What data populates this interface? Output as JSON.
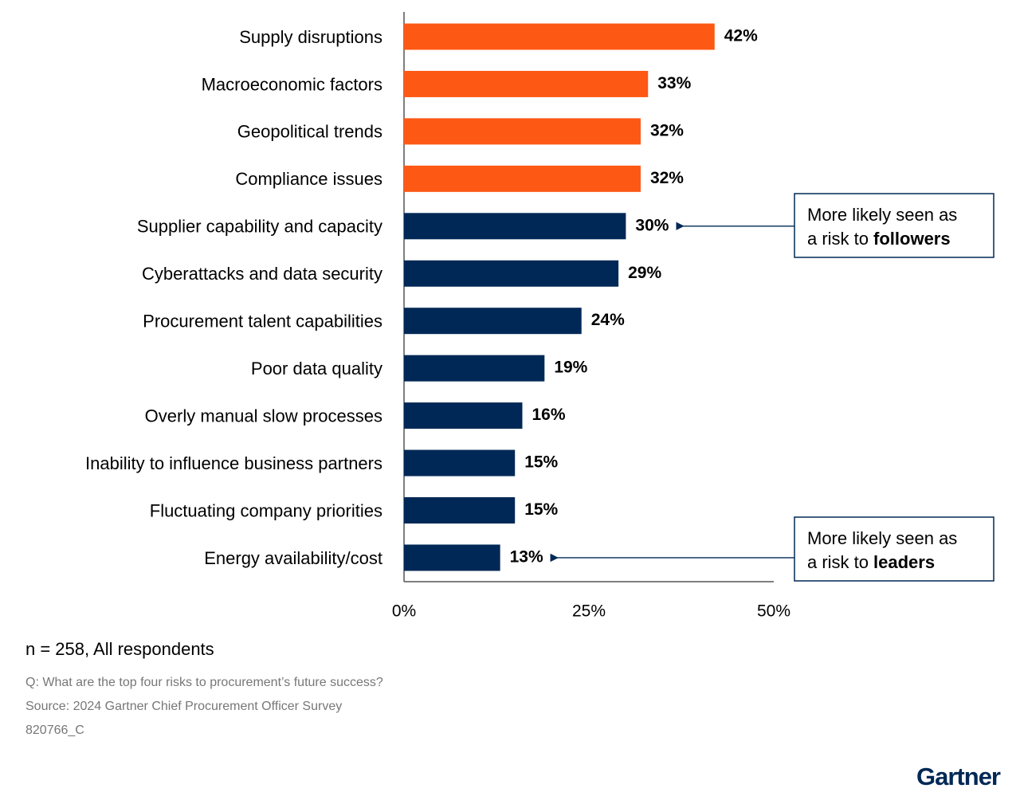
{
  "chart_data": {
    "type": "hbar",
    "categories": [
      "Supply disruptions",
      "Macroeconomic factors",
      "Geopolitical trends",
      "Compliance issues",
      "Supplier capability and capacity",
      "Cyberattacks and data security",
      "Procurement talent capabilities",
      "Poor data quality",
      "Overly manual slow processes",
      "Inability to influence business partners",
      "Fluctuating company priorities",
      "Energy availability/cost"
    ],
    "values": [
      42,
      33,
      32,
      32,
      30,
      29,
      24,
      19,
      16,
      15,
      15,
      13
    ],
    "value_labels": [
      "42%",
      "33%",
      "32%",
      "32%",
      "30%",
      "29%",
      "24%",
      "19%",
      "16%",
      "15%",
      "15%",
      "13%"
    ],
    "colors": [
      "#fe5815",
      "#fe5815",
      "#fe5815",
      "#fe5815",
      "#002856",
      "#002856",
      "#002856",
      "#002856",
      "#002856",
      "#002856",
      "#002856",
      "#002856"
    ],
    "xlim": [
      0,
      50
    ],
    "xticks": [
      {
        "value": 0,
        "label": "0%"
      },
      {
        "value": 25,
        "label": "25%"
      },
      {
        "value": 50,
        "label": "50%"
      }
    ],
    "grid": false,
    "annotations": [
      {
        "line1": "More likely seen as",
        "prefix": "a risk to",
        "bold": "followers"
      },
      {
        "line1": "More likely seen as",
        "prefix": "a risk to",
        "bold": "leaders"
      }
    ]
  },
  "footer": {
    "sample": "n = 258, All respondents",
    "question": "Q: What are the top four risks to procurement’s future success?",
    "source": "Source: 2024 Gartner Chief Procurement Officer Survey",
    "code": "820766_C",
    "logo": "Gartner"
  }
}
